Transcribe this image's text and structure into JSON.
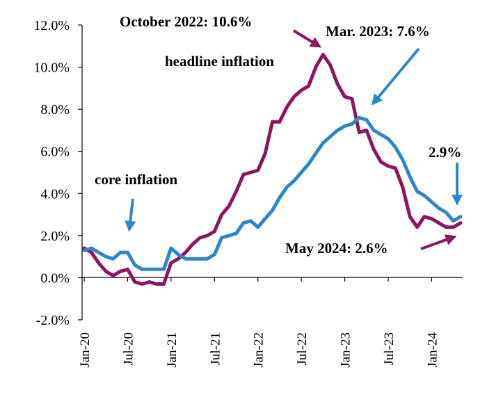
{
  "chart_data": {
    "type": "line",
    "ylim": [
      -2,
      12
    ],
    "yticks": [
      -2,
      0,
      2,
      4,
      6,
      8,
      10,
      12
    ],
    "ytick_labels": [
      "-2.0%",
      "0.0%",
      "2.0%",
      "4.0%",
      "6.0%",
      "8.0%",
      "10.0%",
      "12.0%"
    ],
    "x_tick_labels": [
      "Jan-20",
      "Jul-20",
      "Jan-21",
      "Jul-21",
      "Jan-22",
      "Jul-22",
      "Jan-23",
      "Jul-23",
      "Jan-24"
    ],
    "x_tick_month_index": [
      0,
      6,
      12,
      18,
      24,
      30,
      36,
      42,
      48
    ],
    "x_month_range": [
      0,
      52
    ],
    "grid": false,
    "series": [
      {
        "name": "headline inflation",
        "color": "#8B1560",
        "values": [
          1.4,
          1.2,
          0.7,
          0.3,
          0.1,
          0.3,
          0.4,
          -0.2,
          -0.3,
          -0.2,
          -0.3,
          -0.3,
          0.7,
          0.9,
          1.2,
          1.6,
          1.9,
          2.0,
          2.2,
          3.0,
          3.4,
          4.1,
          4.9,
          5.0,
          5.1,
          5.9,
          7.4,
          7.4,
          8.1,
          8.6,
          8.9,
          9.1,
          10.0,
          10.6,
          10.1,
          9.2,
          8.6,
          8.5,
          6.9,
          7.0,
          6.1,
          5.5,
          5.3,
          5.2,
          4.3,
          2.9,
          2.4,
          2.9,
          2.8,
          2.6,
          2.4,
          2.4,
          2.6
        ]
      },
      {
        "name": "core inflation",
        "color": "#2E86C8",
        "values": [
          1.3,
          1.4,
          1.2,
          1.0,
          0.9,
          1.2,
          1.2,
          0.6,
          0.4,
          0.4,
          0.4,
          0.4,
          1.4,
          1.1,
          0.9,
          0.9,
          0.9,
          0.9,
          1.1,
          1.9,
          2.0,
          2.1,
          2.6,
          2.7,
          2.4,
          2.8,
          3.2,
          3.8,
          4.3,
          4.6,
          5.0,
          5.4,
          5.9,
          6.4,
          6.7,
          7.0,
          7.2,
          7.3,
          7.6,
          7.5,
          7.0,
          6.8,
          6.6,
          6.2,
          5.6,
          4.8,
          4.1,
          3.9,
          3.6,
          3.3,
          3.1,
          2.7,
          2.9
        ]
      }
    ],
    "annotations": [
      {
        "id": "oct2022",
        "text": "October 2022: 10.6%",
        "color": "#8B1560"
      },
      {
        "id": "mar2023",
        "text": "Mar. 2023: 7.6%",
        "color": "#2E86C8"
      },
      {
        "id": "headline",
        "text": "headline inflation"
      },
      {
        "id": "core",
        "text": "core inflation",
        "color": "#2E86C8"
      },
      {
        "id": "core_latest",
        "text": "2.9%",
        "color": "#2E86C8"
      },
      {
        "id": "may2024",
        "text": "May 2024: 2.6%",
        "color": "#8B1560"
      }
    ]
  }
}
